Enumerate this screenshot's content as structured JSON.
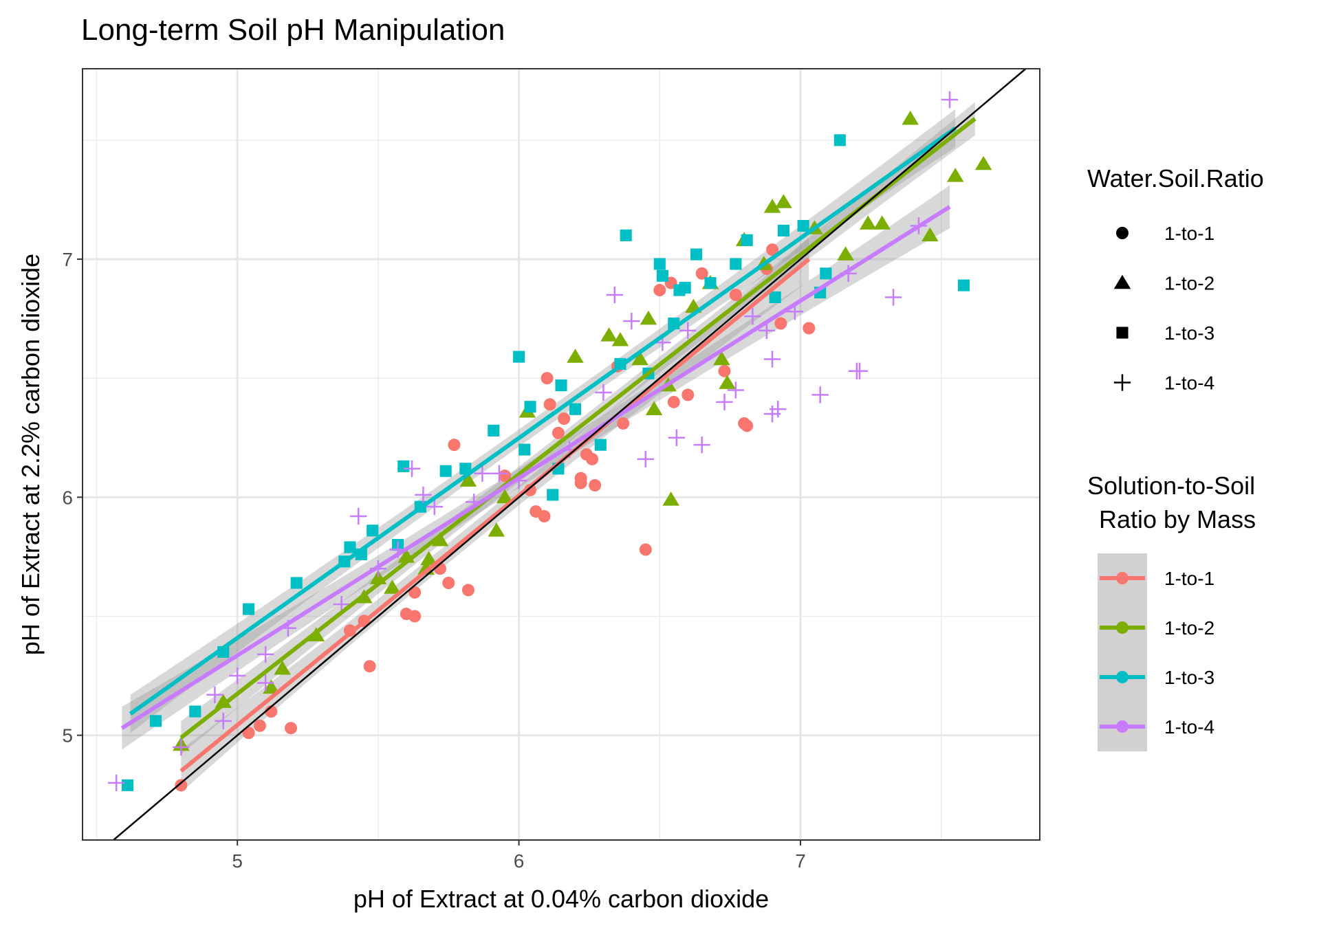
{
  "chart_data": {
    "type": "scatter",
    "title": "Long-term Soil pH Manipulation",
    "xlabel": "pH of Extract at 0.04% carbon dioxide",
    "ylabel": "pH of Extract at 2.2% carbon dioxide",
    "xlim": [
      4.45,
      7.85
    ],
    "ylim": [
      4.56,
      7.8
    ],
    "x_ticks": [
      "5",
      "6",
      "7"
    ],
    "y_ticks": [
      "5",
      "6",
      "7"
    ],
    "grid": true,
    "reference_line": "1:1",
    "legend_placement": "right",
    "colors": {
      "1-to-1": "#F8766D",
      "1-to-2": "#7CAE00",
      "1-to-3": "#00BFC4",
      "1-to-4": "#C77CFF"
    },
    "legend_shape": {
      "title": "Water.Soil.Ratio",
      "items": [
        {
          "label": "1-to-1",
          "shape": "circle"
        },
        {
          "label": "1-to-2",
          "shape": "triangle"
        },
        {
          "label": "1-to-3",
          "shape": "square"
        },
        {
          "label": "1-to-4",
          "shape": "plus"
        }
      ]
    },
    "legend_color": {
      "title_line1": "Solution-to-Soil",
      "title_line2": "Ratio by Mass",
      "items": [
        "1-to-1",
        "1-to-2",
        "1-to-3",
        "1-to-4"
      ]
    },
    "series": [
      {
        "name": "1-to-1",
        "shape": "circle",
        "fit": {
          "x": [
            4.8,
            7.03
          ],
          "y": [
            4.85,
            7.0
          ],
          "band": 0.09
        },
        "points": [
          [
            4.8,
            4.79
          ],
          [
            5.04,
            5.01
          ],
          [
            5.08,
            5.04
          ],
          [
            5.12,
            5.1
          ],
          [
            5.19,
            5.03
          ],
          [
            5.47,
            5.29
          ],
          [
            5.4,
            5.44
          ],
          [
            5.45,
            5.48
          ],
          [
            5.6,
            5.51
          ],
          [
            5.63,
            5.5
          ],
          [
            5.63,
            5.6
          ],
          [
            5.75,
            5.64
          ],
          [
            5.82,
            5.61
          ],
          [
            5.72,
            5.7
          ],
          [
            5.77,
            6.22
          ],
          [
            5.95,
            6.09
          ],
          [
            6.04,
            6.03
          ],
          [
            6.06,
            5.94
          ],
          [
            6.09,
            5.92
          ],
          [
            6.1,
            6.5
          ],
          [
            6.11,
            6.39
          ],
          [
            6.14,
            6.27
          ],
          [
            6.16,
            6.33
          ],
          [
            6.22,
            6.08
          ],
          [
            6.22,
            6.06
          ],
          [
            6.24,
            6.18
          ],
          [
            6.26,
            6.16
          ],
          [
            6.27,
            6.05
          ],
          [
            6.35,
            6.55
          ],
          [
            6.37,
            6.31
          ],
          [
            6.45,
            5.78
          ],
          [
            6.5,
            6.87
          ],
          [
            6.54,
            6.9
          ],
          [
            6.55,
            6.4
          ],
          [
            6.6,
            6.43
          ],
          [
            6.65,
            6.94
          ],
          [
            6.73,
            6.53
          ],
          [
            6.77,
            6.85
          ],
          [
            6.8,
            6.31
          ],
          [
            6.81,
            6.3
          ],
          [
            6.88,
            6.96
          ],
          [
            6.9,
            7.04
          ],
          [
            6.93,
            6.73
          ],
          [
            7.03,
            6.71
          ]
        ]
      },
      {
        "name": "1-to-2",
        "shape": "triangle",
        "fit": {
          "x": [
            4.8,
            7.62
          ],
          "y": [
            4.99,
            7.59
          ],
          "band": 0.07
        },
        "points": [
          [
            4.8,
            4.96
          ],
          [
            4.95,
            5.14
          ],
          [
            5.12,
            5.2
          ],
          [
            5.16,
            5.28
          ],
          [
            5.28,
            5.42
          ],
          [
            5.45,
            5.58
          ],
          [
            5.5,
            5.66
          ],
          [
            5.55,
            5.62
          ],
          [
            5.6,
            5.75
          ],
          [
            5.67,
            5.7
          ],
          [
            5.68,
            5.74
          ],
          [
            5.72,
            5.82
          ],
          [
            5.82,
            6.07
          ],
          [
            5.92,
            5.86
          ],
          [
            5.95,
            6.0
          ],
          [
            6.03,
            6.36
          ],
          [
            6.2,
            6.59
          ],
          [
            6.32,
            6.68
          ],
          [
            6.36,
            6.66
          ],
          [
            6.43,
            6.58
          ],
          [
            6.46,
            6.75
          ],
          [
            6.48,
            6.37
          ],
          [
            6.53,
            6.47
          ],
          [
            6.54,
            5.99
          ],
          [
            6.62,
            6.8
          ],
          [
            6.68,
            6.9
          ],
          [
            6.72,
            6.58
          ],
          [
            6.74,
            6.48
          ],
          [
            6.8,
            7.08
          ],
          [
            6.87,
            6.98
          ],
          [
            6.9,
            7.22
          ],
          [
            6.94,
            7.24
          ],
          [
            7.05,
            7.13
          ],
          [
            7.16,
            7.02
          ],
          [
            7.24,
            7.15
          ],
          [
            7.29,
            7.15
          ],
          [
            7.39,
            7.59
          ],
          [
            7.46,
            7.1
          ],
          [
            7.55,
            7.35
          ],
          [
            7.65,
            7.4
          ]
        ]
      },
      {
        "name": "1-to-3",
        "shape": "square",
        "fit": {
          "x": [
            4.62,
            7.55
          ],
          "y": [
            5.09,
            7.55
          ],
          "band": 0.08
        },
        "points": [
          [
            4.61,
            4.79
          ],
          [
            4.71,
            5.06
          ],
          [
            4.85,
            5.1
          ],
          [
            4.95,
            5.35
          ],
          [
            5.04,
            5.53
          ],
          [
            5.21,
            5.64
          ],
          [
            5.38,
            5.73
          ],
          [
            5.4,
            5.79
          ],
          [
            5.44,
            5.76
          ],
          [
            5.48,
            5.86
          ],
          [
            5.57,
            5.8
          ],
          [
            5.59,
            6.13
          ],
          [
            5.65,
            5.96
          ],
          [
            5.74,
            6.11
          ],
          [
            5.81,
            6.12
          ],
          [
            5.91,
            6.28
          ],
          [
            6.0,
            6.59
          ],
          [
            6.02,
            6.2
          ],
          [
            6.04,
            6.38
          ],
          [
            6.12,
            6.01
          ],
          [
            6.14,
            6.12
          ],
          [
            6.15,
            6.47
          ],
          [
            6.2,
            6.37
          ],
          [
            6.29,
            6.22
          ],
          [
            6.36,
            6.56
          ],
          [
            6.38,
            7.1
          ],
          [
            6.46,
            6.52
          ],
          [
            6.5,
            6.98
          ],
          [
            6.51,
            6.93
          ],
          [
            6.55,
            6.73
          ],
          [
            6.57,
            6.87
          ],
          [
            6.59,
            6.88
          ],
          [
            6.63,
            7.02
          ],
          [
            6.68,
            6.9
          ],
          [
            6.77,
            6.98
          ],
          [
            6.81,
            7.08
          ],
          [
            6.91,
            6.84
          ],
          [
            6.94,
            7.12
          ],
          [
            7.01,
            7.14
          ],
          [
            7.07,
            6.86
          ],
          [
            7.09,
            6.94
          ],
          [
            7.14,
            7.5
          ],
          [
            7.58,
            6.89
          ]
        ]
      },
      {
        "name": "1-to-4",
        "shape": "plus",
        "fit": {
          "x": [
            4.59,
            7.53
          ],
          "y": [
            5.03,
            7.22
          ],
          "band": 0.09
        },
        "points": [
          [
            4.57,
            4.8
          ],
          [
            4.8,
            4.95
          ],
          [
            4.92,
            5.17
          ],
          [
            4.95,
            5.06
          ],
          [
            5.0,
            5.25
          ],
          [
            5.1,
            5.22
          ],
          [
            5.1,
            5.34
          ],
          [
            5.18,
            5.45
          ],
          [
            5.37,
            5.55
          ],
          [
            5.43,
            5.92
          ],
          [
            5.5,
            5.7
          ],
          [
            5.57,
            5.78
          ],
          [
            5.62,
            6.12
          ],
          [
            5.66,
            6.01
          ],
          [
            5.7,
            5.96
          ],
          [
            5.84,
            5.98
          ],
          [
            5.87,
            6.1
          ],
          [
            5.93,
            6.1
          ],
          [
            6.0,
            6.07
          ],
          [
            6.18,
            6.2
          ],
          [
            6.3,
            6.44
          ],
          [
            6.34,
            6.85
          ],
          [
            6.4,
            6.74
          ],
          [
            6.45,
            6.16
          ],
          [
            6.51,
            6.65
          ],
          [
            6.56,
            6.25
          ],
          [
            6.6,
            6.7
          ],
          [
            6.65,
            6.22
          ],
          [
            6.73,
            6.4
          ],
          [
            6.77,
            6.45
          ],
          [
            6.83,
            6.76
          ],
          [
            6.88,
            6.7
          ],
          [
            6.9,
            6.35
          ],
          [
            6.9,
            6.58
          ],
          [
            6.92,
            6.37
          ],
          [
            6.98,
            6.78
          ],
          [
            7.07,
            6.43
          ],
          [
            7.17,
            6.94
          ],
          [
            7.2,
            6.53
          ],
          [
            7.21,
            6.53
          ],
          [
            7.33,
            6.84
          ],
          [
            7.42,
            7.14
          ],
          [
            7.53,
            7.67
          ]
        ]
      }
    ]
  }
}
